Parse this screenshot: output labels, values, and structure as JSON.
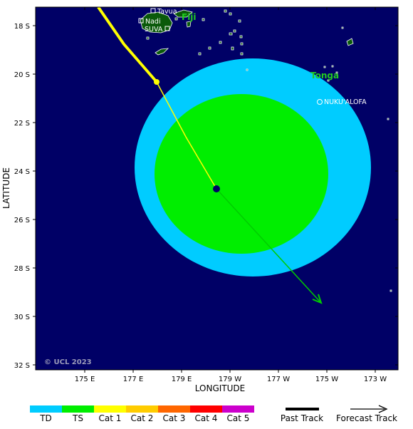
{
  "map": {
    "x_axis_title": "LONGITUDE",
    "y_axis_title": "LATITUDE",
    "copyright": "© UCL 2023",
    "x_ticks": [
      "175 E",
      "177 E",
      "179 E",
      "179 W",
      "177 W",
      "175 W",
      "173 W"
    ],
    "y_ticks": [
      "18 S",
      "20 S",
      "22 S",
      "24 S",
      "26 S",
      "28 S",
      "30 S",
      "32 S"
    ],
    "colors": {
      "ocean": "#000066",
      "land": "#0a5a0a",
      "td_wind_field": "#00ccff",
      "ts_wind_field": "#00ee00",
      "past_track": "#ffff00",
      "forecast_track": "#00cc00"
    }
  },
  "places": {
    "tavua": "Tavua",
    "nadi": "Nadi",
    "suva": "SUVA",
    "nukualofa": "NUKU'ALOFA"
  },
  "countries": {
    "fiji": "Fiji",
    "tonga": "Tonga"
  },
  "legend": {
    "categories": [
      {
        "label": "TD",
        "color": "#00ccff"
      },
      {
        "label": "TS",
        "color": "#00ee00"
      },
      {
        "label": "Cat 1",
        "color": "#ffff00"
      },
      {
        "label": "Cat 2",
        "color": "#ffcc00"
      },
      {
        "label": "Cat 3",
        "color": "#ff6600"
      },
      {
        "label": "Cat 4",
        "color": "#ff0000"
      },
      {
        "label": "Cat 5",
        "color": "#cc00cc"
      }
    ],
    "past_track_label": "Past Track",
    "forecast_track_label": "Forecast Track"
  }
}
